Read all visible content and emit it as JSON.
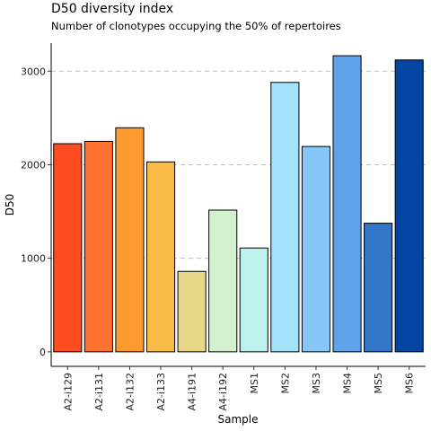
{
  "chart_data": {
    "type": "bar",
    "title": "D50 diversity index",
    "subtitle": "Number of clonotypes occupying the 50% of repertoires",
    "xlabel": "Sample",
    "ylabel": "D50",
    "categories": [
      "A2-i129",
      "A2-i131",
      "A2-i132",
      "A2-i133",
      "A4-i191",
      "A4-i192",
      "MS1",
      "MS2",
      "MS3",
      "MS4",
      "MS5",
      "MS6"
    ],
    "values": [
      2225,
      2250,
      2395,
      2030,
      860,
      1515,
      1110,
      2880,
      2195,
      3165,
      1375,
      3120
    ],
    "colors": [
      "#FF4B20",
      "#FF7330",
      "#FF9A2E",
      "#F9BA46",
      "#E9D78A",
      "#D3F0CF",
      "#BDF2EC",
      "#A4E2F9",
      "#87C7F7",
      "#5EA2E7",
      "#3375C6",
      "#0345A2"
    ],
    "yticks": [
      0,
      1000,
      2000,
      3000
    ],
    "ylim": [
      -155,
      3300
    ],
    "grid": "horizontal dashed",
    "legend": "none"
  }
}
